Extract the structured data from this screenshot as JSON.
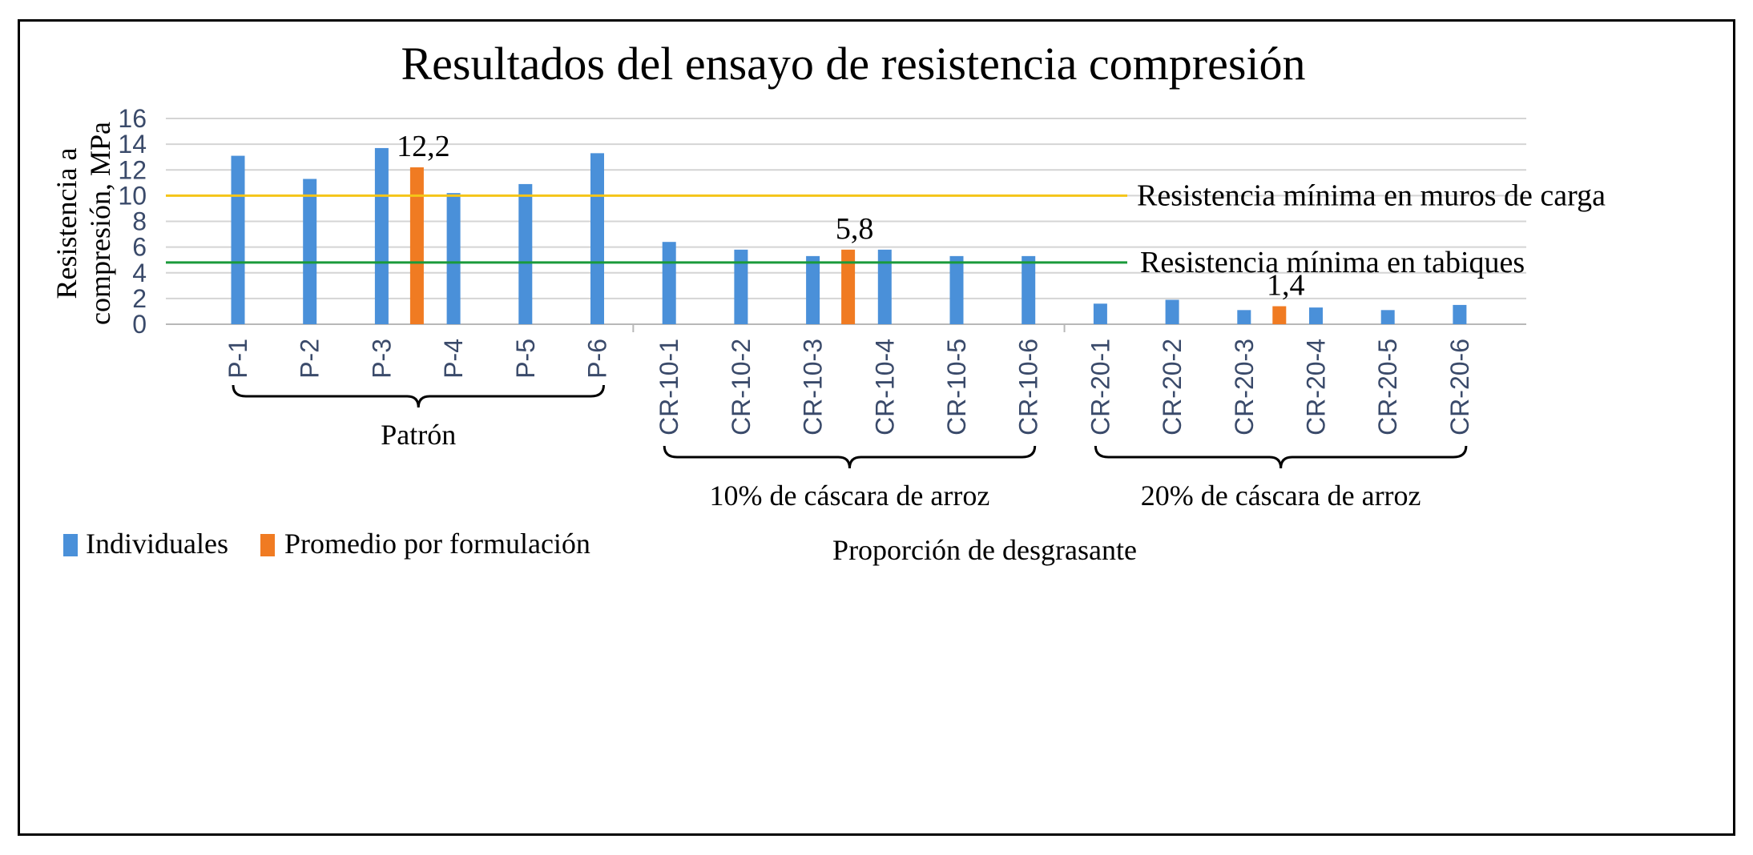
{
  "chart_data": {
    "type": "bar",
    "title": "Resultados del ensayo de resistencia compresión",
    "ylabel_line1": "Resistencia a",
    "ylabel_line2": "compresión, MPa",
    "xlabel": "Proporción de desgrasante",
    "ylim": [
      0,
      16
    ],
    "yticks": [
      0,
      2,
      4,
      6,
      8,
      10,
      12,
      14,
      16
    ],
    "grid": true,
    "categories": [
      "P-1",
      "P-2",
      "P-3",
      "P-4",
      "P-5",
      "P-6",
      "CR-10-1",
      "CR-10-2",
      "CR-10-3",
      "CR-10-4",
      "CR-10-5",
      "CR-10-6",
      "CR-20-1",
      "CR-20-2",
      "CR-20-3",
      "CR-20-4",
      "CR-20-5",
      "CR-20-6"
    ],
    "series": [
      {
        "name": "Individuales",
        "color": "#4a90d9",
        "values": [
          13.1,
          11.3,
          13.7,
          10.2,
          10.9,
          13.3,
          6.4,
          5.8,
          5.3,
          5.8,
          5.3,
          5.3,
          1.6,
          1.9,
          1.1,
          1.3,
          1.1,
          1.5
        ]
      },
      {
        "name": "Promedio por formulación",
        "color": "#f07b22",
        "points": [
          {
            "after_category": "P-3",
            "value": 12.2,
            "label": "12,2"
          },
          {
            "after_category": "CR-10-3",
            "value": 5.8,
            "label": "5,8"
          },
          {
            "after_category": "CR-20-3",
            "value": 1.4,
            "label": "1,4"
          }
        ]
      }
    ],
    "reference_lines": [
      {
        "value": 10,
        "color": "#f5c518",
        "label": "Resistencia mínima en muros de carga"
      },
      {
        "value": 4.8,
        "color": "#1a9a3a",
        "label": "Resistencia mínima en tabiques"
      }
    ],
    "groups": [
      {
        "label": "Patrón",
        "first": 0,
        "last": 5
      },
      {
        "label": "10% de cáscara de arroz",
        "first": 6,
        "last": 11
      },
      {
        "label": "20% de cáscara de arroz",
        "first": 12,
        "last": 17
      }
    ],
    "legend_position": "bottom-left"
  }
}
